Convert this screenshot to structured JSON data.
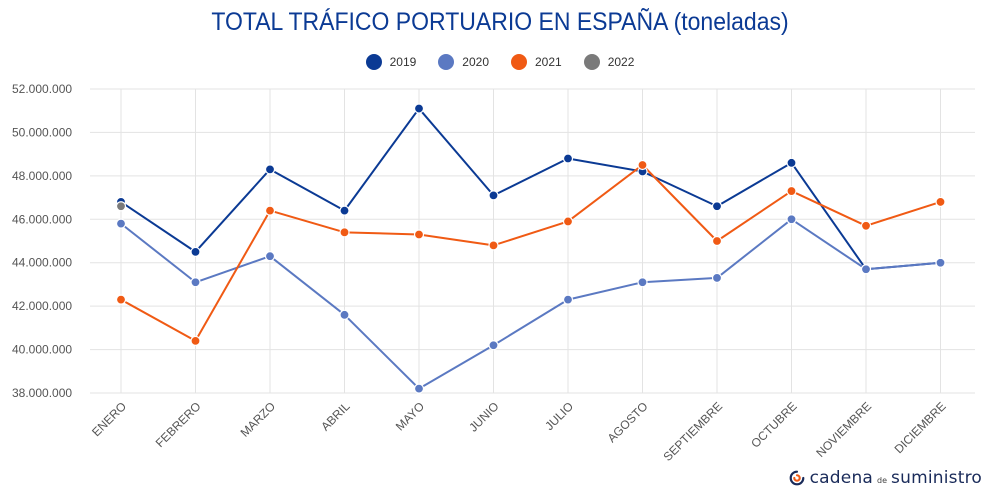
{
  "title": "TOTAL TRÁFICO PORTUARIO EN ESPAÑA (toneladas)",
  "logo": {
    "part1": "cadena",
    "part2": "de",
    "part3": "suministro"
  },
  "chart_data": {
    "type": "line",
    "title": "TOTAL TRÁFICO PORTUARIO EN ESPAÑA (toneladas)",
    "categories": [
      "ENERO",
      "FEBRERO",
      "MARZO",
      "ABRIL",
      "MAYO",
      "JUNIO",
      "JULIO",
      "AGOSTO",
      "SEPTIEMBRE",
      "OCTUBRE",
      "NOVIEMBRE",
      "DICIEMBRE"
    ],
    "ylim": [
      38000000,
      52000000
    ],
    "yticks": [
      38000000,
      40000000,
      42000000,
      44000000,
      46000000,
      48000000,
      50000000,
      52000000
    ],
    "ytick_labels": [
      "38.000.000",
      "40.000.000",
      "42.000.000",
      "44.000.000",
      "46.000.000",
      "48.000.000",
      "50.000.000",
      "52.000.000"
    ],
    "grid": true,
    "legend_position": "top-center",
    "series": [
      {
        "name": "2019",
        "color": "#0b3a94",
        "values": [
          46800000,
          44500000,
          48300000,
          46400000,
          51100000,
          47100000,
          48800000,
          48200000,
          46600000,
          48600000,
          43700000,
          44000000
        ]
      },
      {
        "name": "2020",
        "color": "#5b79c2",
        "values": [
          45800000,
          43100000,
          44300000,
          41600000,
          38200000,
          40200000,
          42300000,
          43100000,
          43300000,
          46000000,
          43700000,
          44000000
        ]
      },
      {
        "name": "2021",
        "color": "#f05a14",
        "values": [
          42300000,
          40400000,
          46400000,
          45400000,
          45300000,
          44800000,
          45900000,
          48500000,
          45000000,
          47300000,
          45700000,
          46800000
        ]
      },
      {
        "name": "2022",
        "color": "#7a7a7a",
        "values": [
          46600000,
          null,
          null,
          null,
          null,
          null,
          null,
          null,
          null,
          null,
          null,
          null
        ]
      }
    ]
  }
}
